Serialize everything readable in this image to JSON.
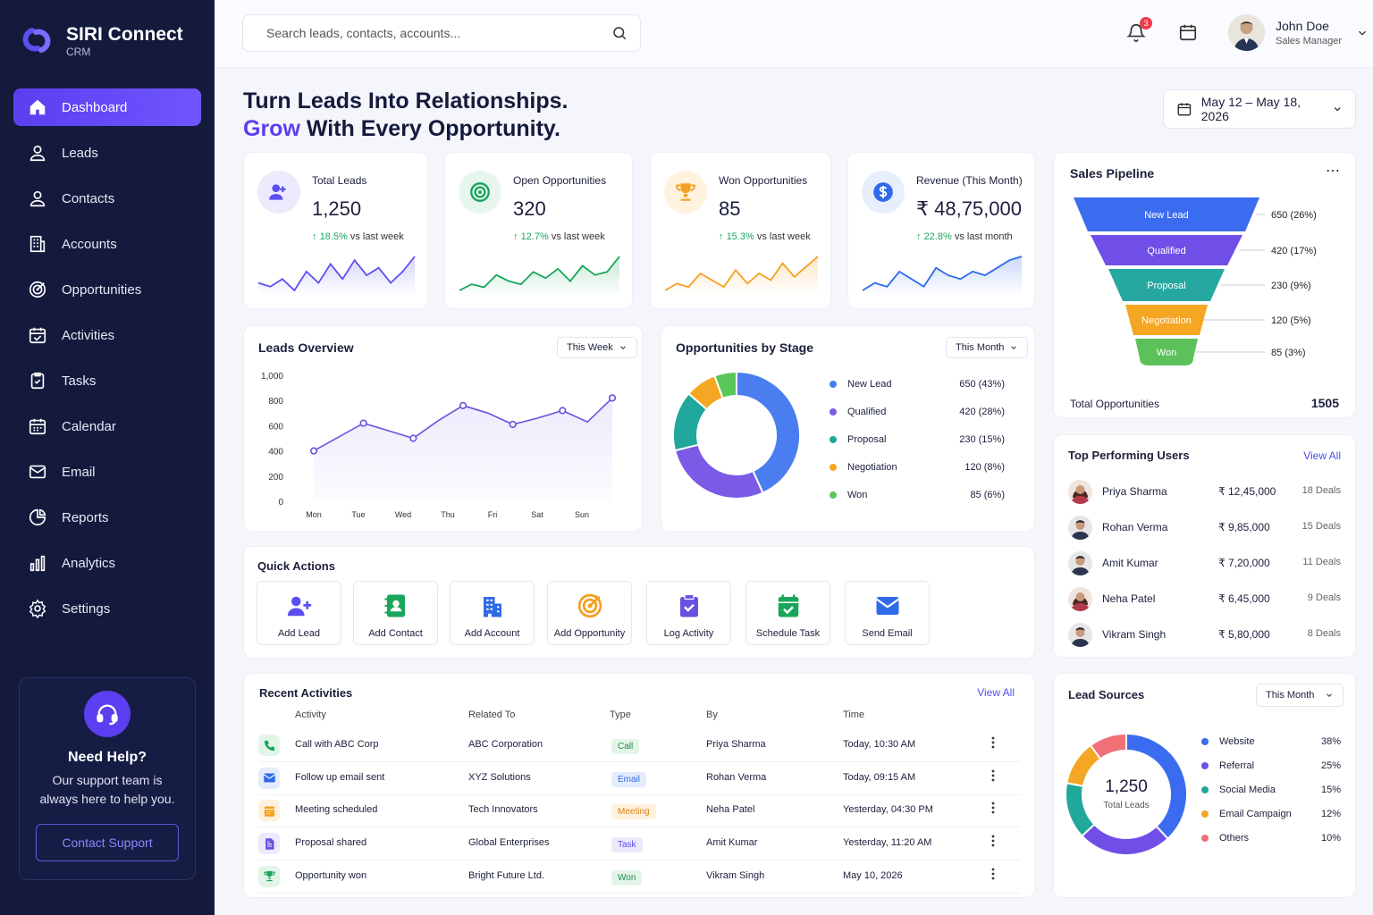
{
  "app": {
    "name": "SIRI Connect",
    "sub": "CRM"
  },
  "nav": [
    {
      "label": "Dashboard",
      "icon": "home-icon"
    },
    {
      "label": "Leads",
      "icon": "user-icon"
    },
    {
      "label": "Contacts",
      "icon": "user-icon"
    },
    {
      "label": "Accounts",
      "icon": "building-icon"
    },
    {
      "label": "Opportunities",
      "icon": "target-icon"
    },
    {
      "label": "Activities",
      "icon": "calendar-check-icon"
    },
    {
      "label": "Tasks",
      "icon": "clipboard-check-icon"
    },
    {
      "label": "Calendar",
      "icon": "calendar-icon"
    },
    {
      "label": "Email",
      "icon": "mail-icon"
    },
    {
      "label": "Reports",
      "icon": "pie-icon"
    },
    {
      "label": "Analytics",
      "icon": "bar-chart-icon"
    },
    {
      "label": "Settings",
      "icon": "gear-icon"
    }
  ],
  "help": {
    "title": "Need Help?",
    "text": "Our support team is always here to help you.",
    "button": "Contact Support"
  },
  "search": {
    "placeholder": "Search leads, contacts, accounts..."
  },
  "notifications": {
    "count": "3"
  },
  "user": {
    "name": "John Doe",
    "role": "Sales Manager"
  },
  "headline": {
    "line1": "Turn Leads Into Relationships.",
    "accent": "Grow",
    "line2_rest": " With Every Opportunity."
  },
  "date_range": "May 12 – May 18, 2026",
  "kpis": [
    {
      "label": "Total Leads",
      "value": "1,250",
      "change": "18.5%",
      "suffix": " vs last week",
      "color": "#5b4ff0",
      "icon": "users-icon",
      "spark": [
        6,
        5,
        7,
        4,
        9,
        6,
        11,
        7,
        12,
        8,
        10,
        6,
        9,
        13
      ]
    },
    {
      "label": "Open Opportunities",
      "value": "320",
      "change": "12.7%",
      "suffix": " vs last week",
      "color": "#1aa65a",
      "icon": "target-icon",
      "spark": [
        3,
        5,
        4,
        8,
        6,
        5,
        9,
        7,
        10,
        6,
        11,
        8,
        9,
        14
      ]
    },
    {
      "label": "Won Opportunities",
      "value": "85",
      "change": "15.3%",
      "suffix": " vs last week",
      "color": "#f4a020",
      "icon": "trophy-icon",
      "spark": [
        4,
        6,
        5,
        9,
        7,
        5,
        10,
        6,
        9,
        7,
        12,
        8,
        11,
        14
      ]
    },
    {
      "label": "Revenue (This Month)",
      "value": "₹ 48,75,000",
      "change": "22.8%",
      "suffix": " vs last month",
      "color": "#2f6be8",
      "icon": "dollar-icon",
      "spark": [
        5,
        7,
        6,
        10,
        8,
        6,
        11,
        9,
        8,
        10,
        9,
        11,
        13,
        14
      ]
    }
  ],
  "leads_overview": {
    "title": "Leads Overview",
    "filter": "This Week"
  },
  "opp_stage": {
    "title": "Opportunities by Stage",
    "filter": "This Month"
  },
  "pipeline": {
    "title": "Sales Pipeline",
    "stages": [
      {
        "name": "New Lead",
        "value": "650 (26%)",
        "color": "#3b6cf0"
      },
      {
        "name": "Qualified",
        "value": "420 (17%)",
        "color": "#6f4fe8"
      },
      {
        "name": "Proposal",
        "value": "230 (9%)",
        "color": "#26a8a0"
      },
      {
        "name": "Negotiation",
        "value": "120 (5%)",
        "color": "#f5a623"
      },
      {
        "name": "Won",
        "value": "85 (3%)",
        "color": "#5cc15a"
      }
    ],
    "total_label": "Total Opportunities",
    "total_value": "1505"
  },
  "top_users": {
    "title": "Top Performing Users",
    "view_all": "View All",
    "rows": [
      {
        "name": "Priya Sharma",
        "amount": "₹ 12,45,000",
        "deals": "18 Deals"
      },
      {
        "name": "Rohan Verma",
        "amount": "₹ 9,85,000",
        "deals": "15 Deals"
      },
      {
        "name": "Amit Kumar",
        "amount": "₹ 7,20,000",
        "deals": "11 Deals"
      },
      {
        "name": "Neha Patel",
        "amount": "₹ 6,45,000",
        "deals": "9 Deals"
      },
      {
        "name": "Vikram Singh",
        "amount": "₹ 5,80,000",
        "deals": "8 Deals"
      }
    ]
  },
  "quick_actions": {
    "title": "Quick Actions",
    "items": [
      {
        "label": "Add Lead",
        "icon": "add-user-icon"
      },
      {
        "label": "Add Contact",
        "icon": "contact-book-icon"
      },
      {
        "label": "Add Account",
        "icon": "building-icon"
      },
      {
        "label": "Add Opportunity",
        "icon": "target-icon"
      },
      {
        "label": "Log Activity",
        "icon": "clipboard-check-icon"
      },
      {
        "label": "Schedule Task",
        "icon": "calendar-check-icon"
      },
      {
        "label": "Send Email",
        "icon": "mail-icon"
      }
    ]
  },
  "recent": {
    "title": "Recent Activities",
    "view_all": "View All",
    "headers": [
      "Activity",
      "Related To",
      "Type",
      "By",
      "Time"
    ],
    "rows": [
      {
        "activity": "Call with ABC Corp",
        "related": "ABC Corporation",
        "type": "Call",
        "by": "Priya Sharma",
        "time": "Today, 10:30 AM",
        "icon": "phone-icon"
      },
      {
        "activity": "Follow up email sent",
        "related": "XYZ Solutions",
        "type": "Email",
        "by": "Rohan Verma",
        "time": "Today, 09:15 AM",
        "icon": "mail-icon"
      },
      {
        "activity": "Meeting scheduled",
        "related": "Tech Innovators",
        "type": "Meeting",
        "by": "Neha Patel",
        "time": "Yesterday, 04:30 PM",
        "icon": "calendar-icon"
      },
      {
        "activity": "Proposal shared",
        "related": "Global Enterprises",
        "type": "Task",
        "by": "Amit Kumar",
        "time": "Yesterday, 11:20 AM",
        "icon": "document-icon"
      },
      {
        "activity": "Opportunity won",
        "related": "Bright Future Ltd.",
        "type": "Won",
        "by": "Vikram Singh",
        "time": "May 10, 2026",
        "icon": "trophy-icon"
      }
    ]
  },
  "lead_sources": {
    "title": "Lead Sources",
    "filter": "This Month",
    "center_value": "1,250",
    "center_label": "Total Leads"
  },
  "chart_data": [
    {
      "type": "line",
      "title": "Leads Overview",
      "categories": [
        "Mon",
        "Tue",
        "Wed",
        "Thu",
        "Fri",
        "Sat",
        "Sun"
      ],
      "x": [
        0,
        1,
        2,
        3,
        4,
        5,
        6,
        7,
        8,
        9,
        10,
        11,
        12
      ],
      "values": [
        400,
        510,
        620,
        560,
        500,
        640,
        760,
        700,
        610,
        660,
        720,
        630,
        820
      ],
      "ylim": [
        0,
        1000
      ],
      "yticks": [
        "0",
        "200",
        "400",
        "600",
        "800",
        "1,000"
      ],
      "color": "#6b4fe0"
    },
    {
      "type": "pie",
      "title": "Opportunities by Stage",
      "labels": [
        "New Lead",
        "Qualified",
        "Proposal",
        "Negotiation",
        "Won"
      ],
      "values": [
        650,
        420,
        230,
        120,
        85
      ],
      "display": [
        "650 (43%)",
        "420 (28%)",
        "230 (15%)",
        "120 (8%)",
        "85 (6%)"
      ],
      "colors": [
        "#4a7ef0",
        "#7b5ae6",
        "#1fa89b",
        "#f5a623",
        "#5ac75a"
      ]
    },
    {
      "type": "pie",
      "title": "Lead Sources",
      "labels": [
        "Website",
        "Referral",
        "Social Media",
        "Email Campaign",
        "Others"
      ],
      "values": [
        38,
        25,
        15,
        12,
        10
      ],
      "display": [
        "38%",
        "25%",
        "15%",
        "12%",
        "10%"
      ],
      "colors": [
        "#3b6cf0",
        "#6f4fe8",
        "#1fa89b",
        "#f5a623",
        "#f07077"
      ]
    }
  ]
}
